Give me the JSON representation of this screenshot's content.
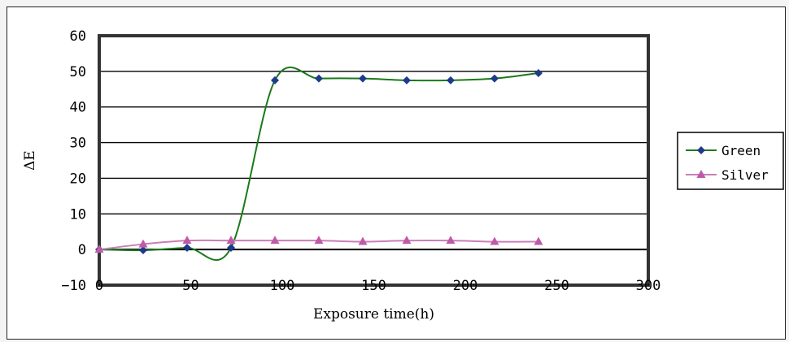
{
  "chart_data": {
    "type": "line",
    "xlabel": "Exposure time(h)",
    "ylabel": "ΔE",
    "xlim": [
      0,
      300
    ],
    "ylim": [
      -10,
      60
    ],
    "x_ticks": [
      0,
      50,
      100,
      150,
      200,
      250,
      300
    ],
    "y_ticks": [
      -10,
      0,
      10,
      20,
      30,
      40,
      50,
      60
    ],
    "grid": "horizontal",
    "legend_position": "right",
    "series": [
      {
        "name": "Green",
        "color": "#1a7a1a",
        "marker": "diamond",
        "marker_color": "#1e3a8a",
        "x": [
          0,
          24,
          48,
          72,
          96,
          120,
          144,
          168,
          192,
          216,
          240
        ],
        "y": [
          0,
          -0.2,
          0.5,
          0.5,
          47.5,
          48,
          48,
          47.5,
          47.5,
          48,
          49.5
        ]
      },
      {
        "name": "Silver",
        "color": "#c97fb8",
        "marker": "triangle",
        "marker_color": "#c05aa8",
        "x": [
          0,
          24,
          48,
          72,
          96,
          120,
          144,
          168,
          192,
          216,
          240
        ],
        "y": [
          0,
          1.5,
          2.5,
          2.5,
          2.5,
          2.5,
          2.2,
          2.5,
          2.5,
          2.2,
          2.2
        ]
      }
    ]
  }
}
